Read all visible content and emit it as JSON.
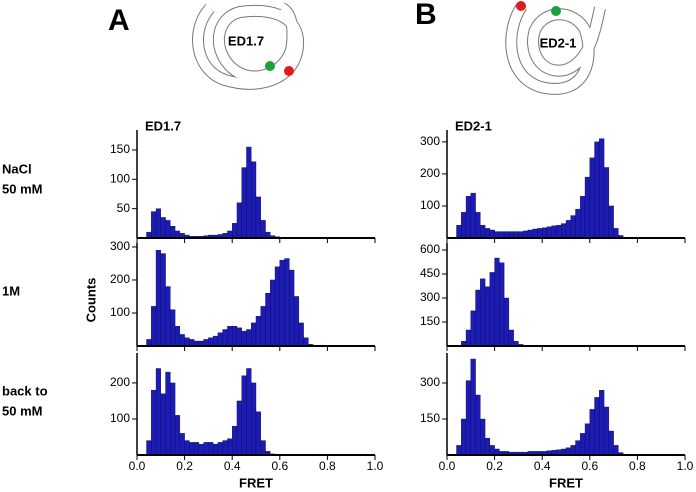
{
  "panel_labels": [
    "A",
    "B"
  ],
  "diagrams": [
    {
      "label": "ED1.7"
    },
    {
      "label": "ED2-1"
    }
  ],
  "row_labels": [
    [
      "NaCl",
      "50 mM"
    ],
    [
      "1M"
    ],
    [
      "back to",
      "50 mM"
    ]
  ],
  "ylabel": "Counts",
  "chart_data": [
    {
      "type": "histogram",
      "title": "ED1.7",
      "color": "#1c1cb4",
      "bins": [
        0,
        0.02,
        0.04,
        0.06,
        0.08,
        0.1,
        0.12,
        0.14,
        0.16,
        0.18,
        0.2,
        0.22,
        0.24,
        0.26,
        0.28,
        0.3,
        0.32,
        0.34,
        0.36,
        0.38,
        0.4,
        0.42,
        0.44,
        0.46,
        0.48,
        0.5,
        0.52,
        0.54,
        0.56,
        0.58,
        0.6,
        0.62,
        0.64,
        0.66,
        0.68,
        0.7,
        0.72,
        0.74,
        0.76,
        0.78,
        0.8
      ],
      "values": [
        0,
        0,
        10,
        45,
        50,
        35,
        30,
        20,
        12,
        8,
        5,
        3,
        3,
        3,
        4,
        5,
        5,
        6,
        8,
        12,
        25,
        60,
        120,
        155,
        130,
        70,
        30,
        10,
        4,
        2,
        1,
        0,
        0,
        0,
        0,
        0,
        0,
        0,
        0,
        0
      ],
      "xlim": [
        0,
        1
      ],
      "xticks": [
        0,
        0.2,
        0.4,
        0.6,
        0.8,
        1
      ],
      "ylim": [
        0,
        184
      ],
      "yticks": [
        50,
        100,
        150
      ]
    },
    {
      "type": "histogram",
      "color": "#1c1cb4",
      "bins": [
        0,
        0.02,
        0.04,
        0.06,
        0.08,
        0.1,
        0.12,
        0.14,
        0.16,
        0.18,
        0.2,
        0.22,
        0.24,
        0.26,
        0.28,
        0.3,
        0.32,
        0.34,
        0.36,
        0.38,
        0.4,
        0.42,
        0.44,
        0.46,
        0.48,
        0.5,
        0.52,
        0.54,
        0.56,
        0.58,
        0.6,
        0.62,
        0.64,
        0.66,
        0.68,
        0.7,
        0.72,
        0.74,
        0.76,
        0.78,
        0.8
      ],
      "values": [
        0,
        0,
        20,
        120,
        290,
        280,
        180,
        110,
        60,
        35,
        25,
        20,
        15,
        15,
        20,
        25,
        30,
        40,
        50,
        60,
        60,
        55,
        45,
        50,
        70,
        90,
        120,
        160,
        200,
        240,
        260,
        265,
        230,
        150,
        70,
        25,
        5,
        0,
        0,
        0
      ],
      "xlim": [
        0,
        1
      ],
      "xticks": [
        0,
        0.2,
        0.4,
        0.6,
        0.8,
        1
      ],
      "ylim": [
        0,
        312
      ],
      "yticks": [
        100,
        200,
        300
      ]
    },
    {
      "type": "histogram",
      "color": "#1c1cb4",
      "xlabel": "FRET",
      "bins": [
        0,
        0.02,
        0.04,
        0.06,
        0.08,
        0.1,
        0.12,
        0.14,
        0.16,
        0.18,
        0.2,
        0.22,
        0.24,
        0.26,
        0.28,
        0.3,
        0.32,
        0.34,
        0.36,
        0.38,
        0.4,
        0.42,
        0.44,
        0.46,
        0.48,
        0.5,
        0.52,
        0.54,
        0.56,
        0.58,
        0.6,
        0.62,
        0.64,
        0.66,
        0.68,
        0.7,
        0.72,
        0.74,
        0.76,
        0.78,
        0.8
      ],
      "values": [
        0,
        0,
        40,
        180,
        240,
        170,
        230,
        200,
        110,
        60,
        40,
        35,
        35,
        30,
        35,
        35,
        30,
        35,
        40,
        45,
        80,
        150,
        220,
        240,
        200,
        120,
        40,
        10,
        3,
        1,
        0,
        0,
        0,
        0,
        0,
        0,
        0,
        0,
        0,
        0
      ],
      "xlim": [
        0,
        1
      ],
      "xticks": [
        {
          "value": 0,
          "label": "0.0"
        },
        0.2,
        0.4,
        0.6,
        0.8,
        {
          "value": 1,
          "label": "1.0"
        }
      ],
      "ylim": [
        0,
        283
      ],
      "yticks": [
        100,
        200
      ]
    },
    {
      "type": "histogram",
      "title": "ED2-1",
      "color": "#1c1cb4",
      "bins": [
        0,
        0.02,
        0.04,
        0.06,
        0.08,
        0.1,
        0.12,
        0.14,
        0.16,
        0.18,
        0.2,
        0.22,
        0.24,
        0.26,
        0.28,
        0.3,
        0.32,
        0.34,
        0.36,
        0.38,
        0.4,
        0.42,
        0.44,
        0.46,
        0.48,
        0.5,
        0.52,
        0.54,
        0.56,
        0.58,
        0.6,
        0.62,
        0.64,
        0.66,
        0.68,
        0.7,
        0.72,
        0.74,
        0.76,
        0.78,
        0.8
      ],
      "values": [
        0,
        0,
        40,
        80,
        130,
        140,
        80,
        40,
        30,
        25,
        20,
        20,
        20,
        20,
        20,
        20,
        22,
        25,
        28,
        30,
        32,
        35,
        38,
        40,
        45,
        55,
        70,
        90,
        130,
        190,
        250,
        300,
        310,
        220,
        100,
        30,
        8,
        2,
        0,
        0
      ],
      "xlim": [
        0,
        1
      ],
      "xticks": [
        0,
        0.2,
        0.4,
        0.6,
        0.8,
        1
      ],
      "ylim": [
        0,
        337
      ],
      "yticks": [
        100,
        200,
        300
      ]
    },
    {
      "type": "histogram",
      "color": "#1c1cb4",
      "bins": [
        0,
        0.02,
        0.04,
        0.06,
        0.08,
        0.1,
        0.12,
        0.14,
        0.16,
        0.18,
        0.2,
        0.22,
        0.24,
        0.26,
        0.28,
        0.3,
        0.32,
        0.34,
        0.36,
        0.38,
        0.4,
        0.42,
        0.44,
        0.46,
        0.48,
        0.5,
        0.52,
        0.54,
        0.56,
        0.58,
        0.6,
        0.62,
        0.64,
        0.66,
        0.68,
        0.7,
        0.72,
        0.74,
        0.76,
        0.78,
        0.8
      ],
      "values": [
        0,
        0,
        5,
        30,
        100,
        220,
        350,
        420,
        370,
        460,
        550,
        520,
        300,
        100,
        30,
        10,
        3,
        0,
        0,
        0,
        0,
        0,
        0,
        0,
        0,
        0,
        0,
        0,
        0,
        0,
        0,
        0,
        0,
        0,
        0,
        0,
        0,
        0,
        0,
        0
      ],
      "xlim": [
        0,
        1
      ],
      "xticks": [
        0,
        0.2,
        0.4,
        0.6,
        0.8,
        1
      ],
      "ylim": [
        0,
        644
      ],
      "yticks": [
        150,
        300,
        450,
        600
      ]
    },
    {
      "type": "histogram",
      "color": "#1c1cb4",
      "xlabel": "FRET",
      "bins": [
        0,
        0.02,
        0.04,
        0.06,
        0.08,
        0.1,
        0.12,
        0.14,
        0.16,
        0.18,
        0.2,
        0.22,
        0.24,
        0.26,
        0.28,
        0.3,
        0.32,
        0.34,
        0.36,
        0.38,
        0.4,
        0.42,
        0.44,
        0.46,
        0.48,
        0.5,
        0.52,
        0.54,
        0.56,
        0.58,
        0.6,
        0.62,
        0.64,
        0.66,
        0.68,
        0.7,
        0.72,
        0.74,
        0.76,
        0.78,
        0.8
      ],
      "values": [
        0,
        0,
        40,
        150,
        310,
        400,
        250,
        150,
        70,
        40,
        25,
        15,
        15,
        12,
        12,
        12,
        12,
        15,
        15,
        15,
        15,
        18,
        20,
        22,
        25,
        30,
        40,
        60,
        90,
        130,
        190,
        240,
        270,
        200,
        100,
        40,
        10,
        0,
        0,
        0
      ],
      "xlim": [
        0,
        1
      ],
      "xticks": [
        {
          "value": 0,
          "label": "0.0"
        },
        0.2,
        0.4,
        0.6,
        0.8,
        {
          "value": 1,
          "label": "1.0"
        }
      ],
      "ylim": [
        0,
        425
      ],
      "yticks": [
        150,
        300
      ]
    }
  ]
}
